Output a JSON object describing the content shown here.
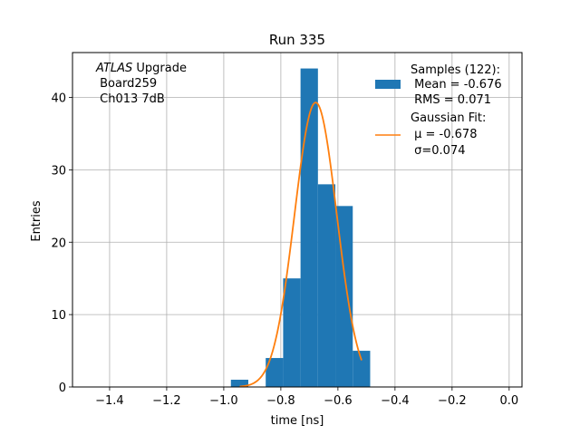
{
  "chart_data": {
    "type": "bar",
    "title": "Run 335",
    "xlabel": "time [ns]",
    "ylabel": "Entries",
    "xlim": [
      -1.53,
      0.045
    ],
    "ylim": [
      0,
      46.2
    ],
    "grid": true,
    "xticks": [
      -1.4,
      -1.2,
      -1.0,
      -0.8,
      -0.6,
      -0.4,
      -0.2,
      0.0
    ],
    "xtick_labels": [
      "−1.4",
      "−1.2",
      "−1.0",
      "−0.8",
      "−0.6",
      "−0.4",
      "−0.2",
      "0.0"
    ],
    "yticks": [
      0,
      10,
      20,
      30,
      40
    ],
    "ytick_labels": [
      "0",
      "10",
      "20",
      "30",
      "40"
    ],
    "annotation": {
      "italic": "ATLAS",
      "line1_rest": " Upgrade",
      "line2": " Board259",
      "line3": " Ch013 7dB"
    },
    "legend": {
      "placement": "top-right",
      "hist_lines": [
        "Samples (122):",
        " Mean = -0.676",
        " RMS = 0.071"
      ],
      "fit_lines": [
        "Gaussian Fit:",
        " μ = -0.678",
        " σ=0.074"
      ]
    },
    "histogram": {
      "name": "Samples (122)",
      "color": "#1f77b4",
      "bins": [
        {
          "x0": -0.975,
          "x1": -0.914,
          "count": 1
        },
        {
          "x0": -0.914,
          "x1": -0.853,
          "count": 0
        },
        {
          "x0": -0.853,
          "x1": -0.792,
          "count": 4
        },
        {
          "x0": -0.792,
          "x1": -0.731,
          "count": 15
        },
        {
          "x0": -0.731,
          "x1": -0.67,
          "count": 44
        },
        {
          "x0": -0.67,
          "x1": -0.609,
          "count": 28
        },
        {
          "x0": -0.609,
          "x1": -0.548,
          "count": 25
        },
        {
          "x0": -0.548,
          "x1": -0.487,
          "count": 5
        }
      ]
    },
    "fit": {
      "name": "Gaussian Fit",
      "color": "#ff7f0e",
      "mu": -0.678,
      "sigma": 0.074,
      "amplitude": 39.3,
      "x_range": [
        -0.944,
        -0.517
      ]
    }
  }
}
